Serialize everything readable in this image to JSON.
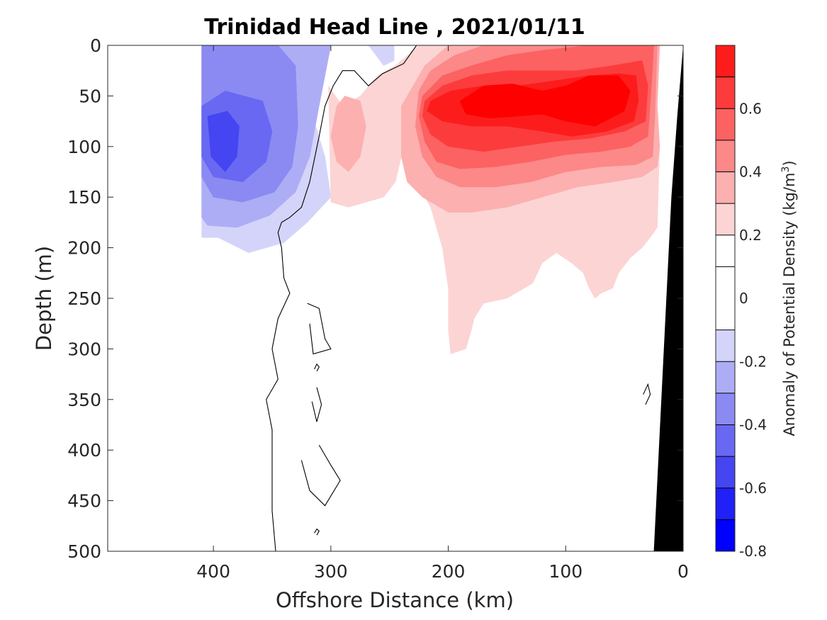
{
  "chart_data": {
    "type": "heatmap",
    "title": "Trinidad Head Line , 2021/01/11",
    "xlabel": "Offshore Distance (km)",
    "ylabel": "Depth (m)",
    "xlim": [
      490,
      0
    ],
    "ylim": [
      0,
      500
    ],
    "x_ticks": [
      400,
      300,
      200,
      100,
      0
    ],
    "y_ticks": [
      0,
      50,
      100,
      150,
      200,
      250,
      300,
      350,
      400,
      450,
      500
    ],
    "y_reversed": true,
    "colorbar": {
      "label": "Anomaly of Potential Density (kg/m",
      "label_sup": "3",
      "label_end": ")",
      "range": [
        -0.8,
        0.8
      ],
      "levels": [
        -0.8,
        -0.7,
        -0.6,
        -0.5,
        -0.4,
        -0.3,
        -0.2,
        -0.1,
        0.1,
        0.2,
        0.3,
        0.4,
        0.5,
        0.6,
        0.7,
        0.8
      ],
      "tick_labels": [
        "-0.8",
        "-0.6",
        "-0.4",
        "-0.2",
        "0",
        "0.2",
        "0.4",
        "0.6"
      ],
      "tick_values": [
        -0.8,
        -0.6,
        -0.4,
        -0.2,
        0,
        0.2,
        0.4,
        0.6
      ],
      "colors": [
        "#0000ff",
        "#2020f7",
        "#4545f2",
        "#6868f2",
        "#8a8af2",
        "#adadf6",
        "#d4d4fb",
        "#ffffff",
        "#ffffff",
        "#fcd4d4",
        "#fcb0b0",
        "#fc8888",
        "#fc6262",
        "#fc3c3c",
        "#fd1c1c",
        "#ff0000"
      ]
    },
    "regions": [
      {
        "name": "neg-0.2",
        "color": "#d4d4fb",
        "points": [
          [
            410,
            0
          ],
          [
            268,
            0
          ],
          [
            255,
            20
          ],
          [
            246,
            15
          ],
          [
            246,
            0
          ],
          [
            268,
            0
          ],
          [
            300,
            0
          ],
          [
            312,
            5
          ],
          [
            318,
            60
          ],
          [
            305,
            110
          ],
          [
            300,
            150
          ],
          [
            320,
            175
          ],
          [
            340,
            195
          ],
          [
            370,
            205
          ],
          [
            396,
            190
          ],
          [
            410,
            190
          ]
        ]
      },
      {
        "name": "neg-0.3",
        "color": "#adadf6",
        "points": [
          [
            410,
            0
          ],
          [
            300,
            0
          ],
          [
            310,
            60
          ],
          [
            318,
            110
          ],
          [
            330,
            145
          ],
          [
            352,
            168
          ],
          [
            380,
            180
          ],
          [
            405,
            178
          ],
          [
            410,
            170
          ]
        ]
      },
      {
        "name": "neg-0.4",
        "color": "#8a8af2",
        "points": [
          [
            410,
            0
          ],
          [
            345,
            0
          ],
          [
            330,
            20
          ],
          [
            328,
            80
          ],
          [
            333,
            120
          ],
          [
            348,
            145
          ],
          [
            375,
            155
          ],
          [
            400,
            150
          ],
          [
            410,
            130
          ]
        ]
      },
      {
        "name": "neg-0.5",
        "color": "#6868f2",
        "points": [
          [
            410,
            60
          ],
          [
            390,
            45
          ],
          [
            358,
            55
          ],
          [
            350,
            85
          ],
          [
            355,
            115
          ],
          [
            375,
            135
          ],
          [
            400,
            130
          ],
          [
            410,
            110
          ]
        ]
      },
      {
        "name": "neg-0.6",
        "color": "#4545f2",
        "points": [
          [
            405,
            70
          ],
          [
            388,
            65
          ],
          [
            378,
            80
          ],
          [
            380,
            110
          ],
          [
            390,
            125
          ],
          [
            402,
            110
          ]
        ]
      },
      {
        "name": "pos-0.1",
        "color": "#fcd4d4",
        "points": [
          [
            290,
            60
          ],
          [
            302,
            40
          ],
          [
            300,
            155
          ],
          [
            285,
            160
          ],
          [
            255,
            150
          ],
          [
            245,
            135
          ],
          [
            240,
            110
          ],
          [
            230,
            120
          ],
          [
            225,
            140
          ],
          [
            215,
            160
          ],
          [
            205,
            200
          ],
          [
            200,
            240
          ],
          [
            200,
            280
          ],
          [
            198,
            305
          ],
          [
            185,
            300
          ],
          [
            180,
            280
          ],
          [
            178,
            270
          ],
          [
            170,
            255
          ],
          [
            150,
            250
          ],
          [
            128,
            235
          ],
          [
            120,
            215
          ],
          [
            108,
            205
          ],
          [
            95,
            215
          ],
          [
            85,
            225
          ],
          [
            80,
            240
          ],
          [
            75,
            250
          ],
          [
            70,
            245
          ],
          [
            60,
            240
          ],
          [
            55,
            225
          ],
          [
            45,
            210
          ],
          [
            35,
            200
          ],
          [
            28,
            190
          ],
          [
            22,
            180
          ],
          [
            20,
            100
          ],
          [
            22,
            60
          ],
          [
            20,
            0
          ],
          [
            225,
            0
          ],
          [
            245,
            20
          ],
          [
            260,
            30
          ],
          [
            275,
            50
          ]
        ]
      },
      {
        "name": "pos-0.2",
        "color": "#fcb0b0",
        "points": [
          [
            230,
            40
          ],
          [
            220,
            20
          ],
          [
            200,
            0
          ],
          [
            20,
            0
          ],
          [
            22,
            60
          ],
          [
            20,
            100
          ],
          [
            22,
            120
          ],
          [
            35,
            130
          ],
          [
            60,
            135
          ],
          [
            90,
            140
          ],
          [
            120,
            150
          ],
          [
            150,
            160
          ],
          [
            180,
            165
          ],
          [
            200,
            165
          ],
          [
            222,
            150
          ],
          [
            235,
            135
          ],
          [
            240,
            110
          ],
          [
            240,
            60
          ]
        ]
      },
      {
        "name": "pos-0.2-b",
        "color": "#fcb0b0",
        "points": [
          [
            295,
            60
          ],
          [
            288,
            50
          ],
          [
            275,
            55
          ],
          [
            270,
            80
          ],
          [
            275,
            110
          ],
          [
            285,
            125
          ],
          [
            295,
            115
          ],
          [
            300,
            90
          ]
        ]
      },
      {
        "name": "pos-0.3",
        "color": "#fc8888",
        "points": [
          [
            225,
            45
          ],
          [
            215,
            25
          ],
          [
            195,
            10
          ],
          [
            170,
            0
          ],
          [
            22,
            0
          ],
          [
            24,
            70
          ],
          [
            26,
            110
          ],
          [
            40,
            118
          ],
          [
            70,
            120
          ],
          [
            100,
            125
          ],
          [
            130,
            135
          ],
          [
            160,
            140
          ],
          [
            190,
            140
          ],
          [
            210,
            130
          ],
          [
            222,
            110
          ],
          [
            228,
            80
          ]
        ]
      },
      {
        "name": "pos-0.4",
        "color": "#fc6262",
        "points": [
          [
            222,
            50
          ],
          [
            205,
            30
          ],
          [
            180,
            20
          ],
          [
            150,
            10
          ],
          [
            120,
            5
          ],
          [
            80,
            0
          ],
          [
            25,
            0
          ],
          [
            27,
            40
          ],
          [
            30,
            90
          ],
          [
            45,
            100
          ],
          [
            70,
            105
          ],
          [
            100,
            108
          ],
          [
            130,
            115
          ],
          [
            160,
            120
          ],
          [
            190,
            122
          ],
          [
            210,
            115
          ],
          [
            220,
            95
          ],
          [
            225,
            70
          ]
        ]
      },
      {
        "name": "pos-0.5",
        "color": "#fc3c3c",
        "points": [
          [
            220,
            55
          ],
          [
            205,
            40
          ],
          [
            180,
            30
          ],
          [
            150,
            25
          ],
          [
            120,
            25
          ],
          [
            90,
            25
          ],
          [
            60,
            20
          ],
          [
            35,
            15
          ],
          [
            30,
            40
          ],
          [
            32,
            75
          ],
          [
            50,
            85
          ],
          [
            80,
            92
          ],
          [
            110,
            95
          ],
          [
            140,
            100
          ],
          [
            170,
            105
          ],
          [
            200,
            100
          ],
          [
            215,
            88
          ],
          [
            222,
            70
          ]
        ]
      },
      {
        "name": "pos-0.6",
        "color": "#fd1c1c",
        "points": [
          [
            215,
            55
          ],
          [
            198,
            45
          ],
          [
            170,
            40
          ],
          [
            140,
            40
          ],
          [
            110,
            35
          ],
          [
            80,
            30
          ],
          [
            55,
            28
          ],
          [
            40,
            30
          ],
          [
            38,
            55
          ],
          [
            42,
            75
          ],
          [
            65,
            85
          ],
          [
            95,
            90
          ],
          [
            120,
            85
          ],
          [
            150,
            80
          ],
          [
            180,
            80
          ],
          [
            205,
            75
          ],
          [
            218,
            65
          ]
        ]
      },
      {
        "name": "pos-0.7",
        "color": "#ff0000",
        "points": [
          [
            190,
            55
          ],
          [
            170,
            40
          ],
          [
            145,
            38
          ],
          [
            120,
            45
          ],
          [
            100,
            40
          ],
          [
            80,
            30
          ],
          [
            55,
            30
          ],
          [
            45,
            45
          ],
          [
            50,
            65
          ],
          [
            75,
            80
          ],
          [
            100,
            75
          ],
          [
            120,
            68
          ],
          [
            140,
            70
          ],
          [
            165,
            72
          ],
          [
            185,
            68
          ]
        ]
      }
    ],
    "contour_lines": [
      [
        [
          227,
          0
        ],
        [
          238,
          18
        ],
        [
          256,
          28
        ],
        [
          268,
          40
        ],
        [
          280,
          25
        ],
        [
          290,
          25
        ],
        [
          298,
          40
        ],
        [
          305,
          60
        ],
        [
          310,
          90
        ],
        [
          318,
          135
        ],
        [
          325,
          160
        ],
        [
          335,
          170
        ],
        [
          342,
          175
        ],
        [
          345,
          185
        ],
        [
          342,
          200
        ],
        [
          340,
          230
        ],
        [
          335,
          245
        ],
        [
          345,
          270
        ],
        [
          350,
          300
        ],
        [
          345,
          330
        ],
        [
          355,
          350
        ],
        [
          350,
          380
        ],
        [
          350,
          420
        ],
        [
          350,
          460
        ],
        [
          347,
          500
        ]
      ],
      [
        [
          320,
          255
        ],
        [
          310,
          260
        ],
        [
          305,
          290
        ],
        [
          300,
          300
        ],
        [
          315,
          305
        ],
        [
          318,
          275
        ]
      ],
      [
        [
          312,
          338
        ],
        [
          308,
          355
        ],
        [
          312,
          372
        ],
        [
          316,
          352
        ]
      ],
      [
        [
          310,
          395
        ],
        [
          300,
          415
        ],
        [
          292,
          430
        ],
        [
          305,
          455
        ],
        [
          318,
          440
        ],
        [
          325,
          410
        ]
      ],
      [
        [
          32,
          355
        ],
        [
          28,
          345
        ],
        [
          30,
          335
        ],
        [
          34,
          345
        ]
      ],
      [
        [
          312,
          322
        ],
        [
          310,
          318
        ],
        [
          312,
          315
        ],
        [
          314,
          320
        ]
      ],
      [
        [
          312,
          484
        ],
        [
          310,
          480
        ],
        [
          312,
          478
        ],
        [
          314,
          482
        ]
      ]
    ],
    "bathymetry": [
      [
        0,
        0
      ],
      [
        0,
        500
      ],
      [
        25,
        500
      ],
      [
        10,
        150
      ],
      [
        5,
        70
      ]
    ]
  }
}
